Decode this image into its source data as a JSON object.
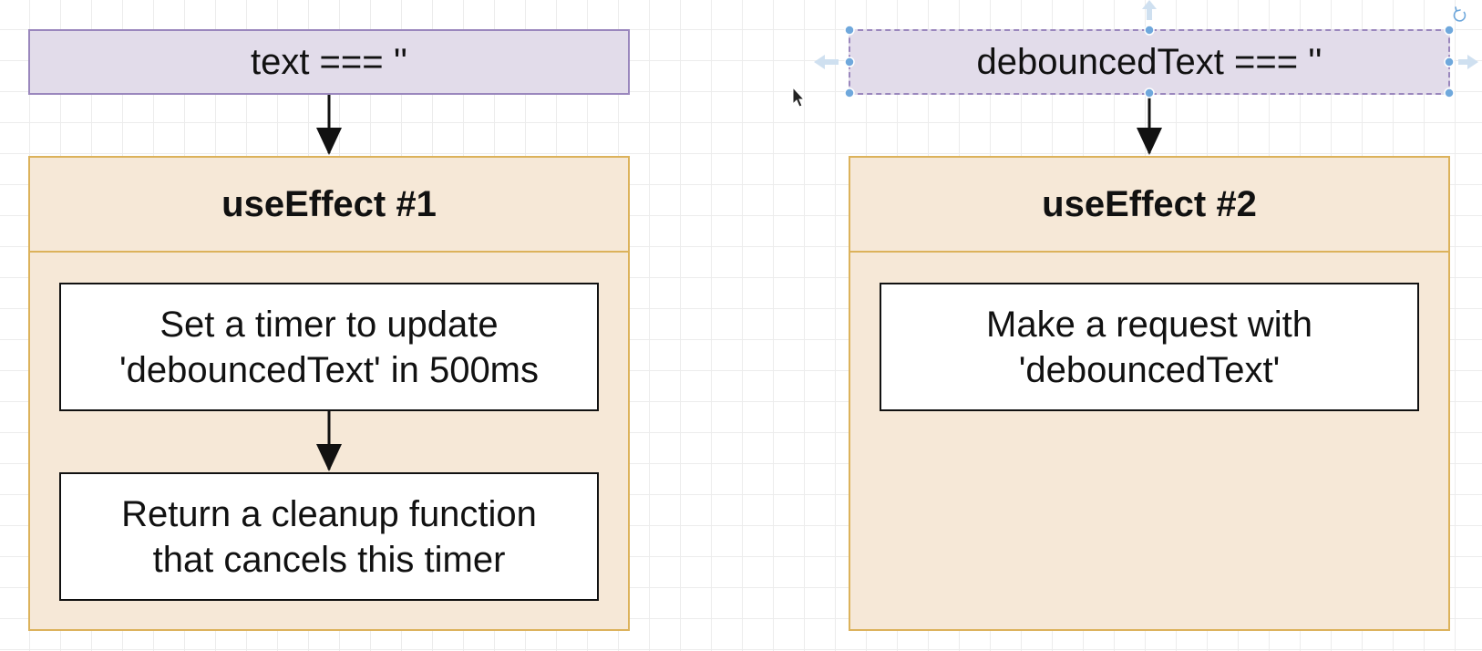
{
  "left": {
    "condition": "text === ''",
    "effect_title": "useEffect #1",
    "steps": [
      "Set a timer to update\n'debouncedText' in 500ms",
      "Return a cleanup function\nthat cancels this timer"
    ]
  },
  "right": {
    "condition": "debouncedText === ''",
    "effect_title": "useEffect #2",
    "steps": [
      "Make a request with\n'debouncedText'"
    ]
  },
  "colors": {
    "condition_fill": "#e2dcea",
    "condition_border": "#9a87bd",
    "effect_fill": "#f6e8d7",
    "effect_border": "#dcb25b",
    "selection_handle": "#6fa8dc"
  }
}
